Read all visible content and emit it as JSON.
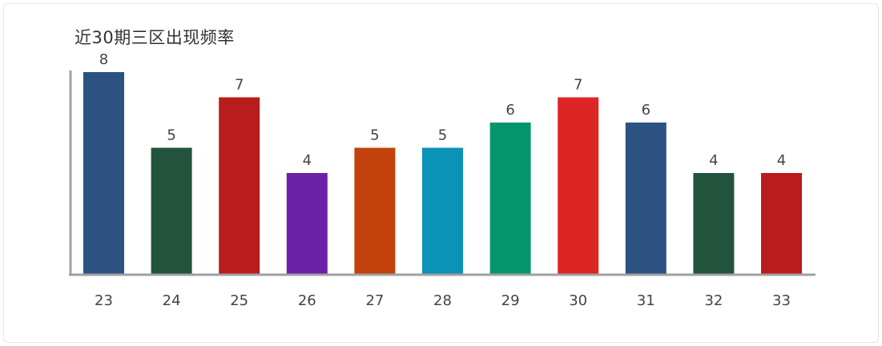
{
  "chart_data": {
    "type": "bar",
    "title": "近30期三区出现频率",
    "xlabel": "",
    "ylabel": "",
    "categories": [
      "23",
      "24",
      "25",
      "26",
      "27",
      "28",
      "29",
      "30",
      "31",
      "32",
      "33"
    ],
    "values": [
      8,
      5,
      7,
      4,
      5,
      5,
      6,
      7,
      6,
      4,
      4
    ],
    "colors": [
      "#2c5282",
      "#22543d",
      "#b91c1c",
      "#6b21a8",
      "#c2410c",
      "#0a92b7",
      "#04966a",
      "#dc2626",
      "#2c5282",
      "#22543d",
      "#b91c1c"
    ],
    "ylim": [
      0,
      8
    ],
    "grid": false,
    "legend": "none",
    "data_labels": true
  }
}
